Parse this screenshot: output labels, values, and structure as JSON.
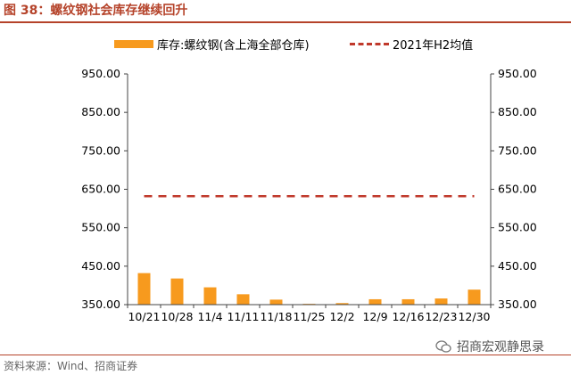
{
  "figure": {
    "title": "图 38：螺纹钢社会库存继续回升",
    "source": "资料来源：Wind、招商证券",
    "watermark": "招商宏观静思录"
  },
  "chart_data": {
    "type": "bar",
    "categories": [
      "10/21",
      "10/28",
      "11/4",
      "11/11",
      "11/18",
      "11/25",
      "12/2",
      "12/9",
      "12/16",
      "12/23",
      "12/30"
    ],
    "series": [
      {
        "name": "库存:螺纹钢(含上海全部仓库)",
        "type": "bar",
        "color": "#f79a1e",
        "values": [
          432,
          418,
          395,
          377,
          363,
          352,
          354,
          364,
          364,
          366,
          389
        ]
      },
      {
        "name": "2021年H2均值",
        "type": "line",
        "style": "dashed",
        "color": "#c0392b",
        "values": [
          632,
          632,
          632,
          632,
          632,
          632,
          632,
          632,
          632,
          632,
          632
        ]
      }
    ],
    "ylim": [
      350,
      950
    ],
    "yticks": [
      "950.00",
      "850.00",
      "750.00",
      "650.00",
      "550.00",
      "450.00",
      "350.00"
    ],
    "ytick_values": [
      950,
      850,
      750,
      650,
      550,
      450,
      350
    ],
    "y2ticks": [
      "950.00",
      "850.00",
      "750.00",
      "650.00",
      "550.00",
      "450.00",
      "350.00"
    ],
    "legend_position": "top",
    "grid": false
  }
}
